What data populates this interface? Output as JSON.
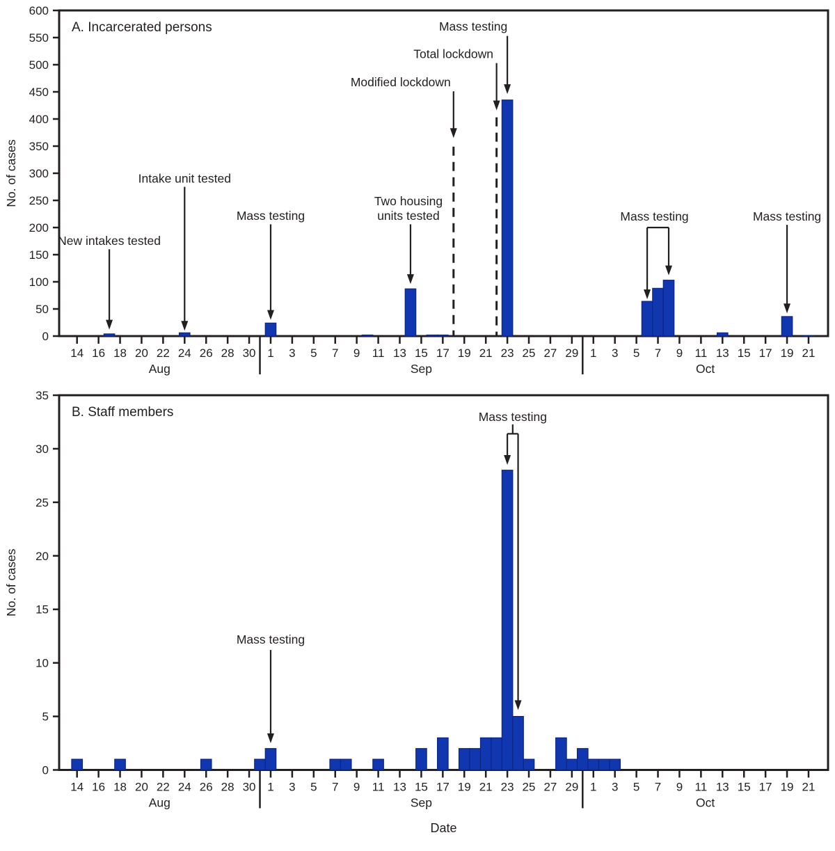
{
  "figure": {
    "xlabel": "Date",
    "colors": {
      "bar_fill": "#1137b0",
      "bar_stroke": "#0e2580",
      "axis": "#231f20",
      "background": "#ffffff"
    },
    "x_axis": {
      "range": [
        "Aug 14",
        "Oct 21"
      ],
      "months": [
        {
          "label": "Aug",
          "first_day": 14,
          "last_day": 31,
          "tick_days": [
            14,
            16,
            18,
            20,
            22,
            24,
            26,
            28,
            30
          ]
        },
        {
          "label": "Sep",
          "first_day": 1,
          "last_day": 30,
          "tick_days": [
            1,
            3,
            5,
            7,
            9,
            11,
            13,
            15,
            17,
            19,
            21,
            23,
            25,
            27,
            29
          ]
        },
        {
          "label": "Oct",
          "first_day": 1,
          "last_day": 21,
          "tick_days": [
            1,
            3,
            5,
            7,
            9,
            11,
            13,
            15,
            17,
            19,
            21
          ]
        }
      ]
    }
  },
  "chart_data": [
    {
      "type": "bar",
      "title": "A. Incarcerated persons",
      "ylabel": "No. of cases",
      "ylim": [
        0,
        600
      ],
      "ytick_step": 50,
      "bars": [
        [
          "Aug 17",
          4
        ],
        [
          "Aug 24",
          6
        ],
        [
          "Sep 1",
          24
        ],
        [
          "Sep 10",
          2
        ],
        [
          "Sep 14",
          87
        ],
        [
          "Sep 16",
          2
        ],
        [
          "Sep 17",
          2
        ],
        [
          "Sep 23",
          435
        ],
        [
          "Oct 6",
          64
        ],
        [
          "Oct 7",
          88
        ],
        [
          "Oct 8",
          103
        ],
        [
          "Oct 13",
          6
        ],
        [
          "Oct 19",
          36
        ],
        [
          "Oct 21",
          1
        ]
      ],
      "annotations": [
        {
          "kind": "arrow",
          "text": [
            "New intakes tested"
          ],
          "x": "Aug 17",
          "text_dx": 0,
          "text_bottom": 168,
          "from": 160,
          "to": 12
        },
        {
          "kind": "arrow",
          "text": [
            "Intake unit tested"
          ],
          "x": "Aug 24",
          "text_dx": 0,
          "text_bottom": 283,
          "from": 275,
          "to": 10
        },
        {
          "kind": "arrow",
          "text": [
            "Mass testing"
          ],
          "x": "Sep 1",
          "text_dx": 0,
          "text_bottom": 214,
          "from": 206,
          "to": 30
        },
        {
          "kind": "arrow",
          "text": [
            "Two housing",
            "units tested"
          ],
          "x": "Sep 14",
          "text_dx": -3,
          "text_bottom": 214,
          "from": 206,
          "to": 96
        },
        {
          "kind": "dashed",
          "text": [
            "Modified lockdown"
          ],
          "x": "Sep 18",
          "text_dx": -76,
          "text_bottom": 460,
          "from": 451,
          "to": 365,
          "line_top": 349
        },
        {
          "kind": "dashed",
          "text": [
            "Total lockdown"
          ],
          "x": "Sep 22",
          "text_dx": -62,
          "text_bottom": 512,
          "from": 503,
          "to": 416,
          "line_top": 403
        },
        {
          "kind": "arrow",
          "text": [
            "Mass testing"
          ],
          "x": "Sep 23",
          "text_dx": -49,
          "text_bottom": 563,
          "from": 553,
          "to": 446
        },
        {
          "kind": "bracket",
          "text": [
            "Mass testing"
          ],
          "left_x": "Oct 6",
          "right_x": "Oct 8",
          "text_dx": -5,
          "text_bottom": 213,
          "bracket_y": 200,
          "left_to": 68,
          "right_to": 112
        },
        {
          "kind": "arrow",
          "text": [
            "Mass testing"
          ],
          "x": "Oct 19",
          "text_dx": 0,
          "text_bottom": 213,
          "from": 205,
          "to": 42
        }
      ]
    },
    {
      "type": "bar",
      "title": "B. Staff members",
      "ylabel": "No. of cases",
      "ylim": [
        0,
        35
      ],
      "ytick_step": 5,
      "bars": [
        [
          "Aug 14",
          1
        ],
        [
          "Aug 18",
          1
        ],
        [
          "Aug 26",
          1
        ],
        [
          "Aug 31",
          1
        ],
        [
          "Sep 1",
          2
        ],
        [
          "Sep 7",
          1
        ],
        [
          "Sep 8",
          1
        ],
        [
          "Sep 11",
          1
        ],
        [
          "Sep 15",
          2
        ],
        [
          "Sep 17",
          3
        ],
        [
          "Sep 19",
          2
        ],
        [
          "Sep 20",
          2
        ],
        [
          "Sep 21",
          3
        ],
        [
          "Sep 22",
          3
        ],
        [
          "Sep 23",
          28
        ],
        [
          "Sep 24",
          5
        ],
        [
          "Sep 25",
          1
        ],
        [
          "Sep 28",
          3
        ],
        [
          "Sep 29",
          1
        ],
        [
          "Sep 30",
          2
        ],
        [
          "Oct 1",
          1
        ],
        [
          "Oct 2",
          1
        ],
        [
          "Oct 3",
          1
        ]
      ],
      "annotations": [
        {
          "kind": "arrow",
          "text": [
            "Mass testing"
          ],
          "x": "Sep 1",
          "text_dx": 0,
          "text_bottom": 11.8,
          "from": 11.2,
          "to": 2.5
        },
        {
          "kind": "bracket",
          "text": [
            "Mass testing"
          ],
          "left_x": "Sep 23",
          "right_x": "Sep 24",
          "text_dx": 0,
          "text_bottom": 32.6,
          "bracket_y": 31.4,
          "left_to": 28.5,
          "right_to": 5.6,
          "stem": true
        }
      ]
    }
  ]
}
